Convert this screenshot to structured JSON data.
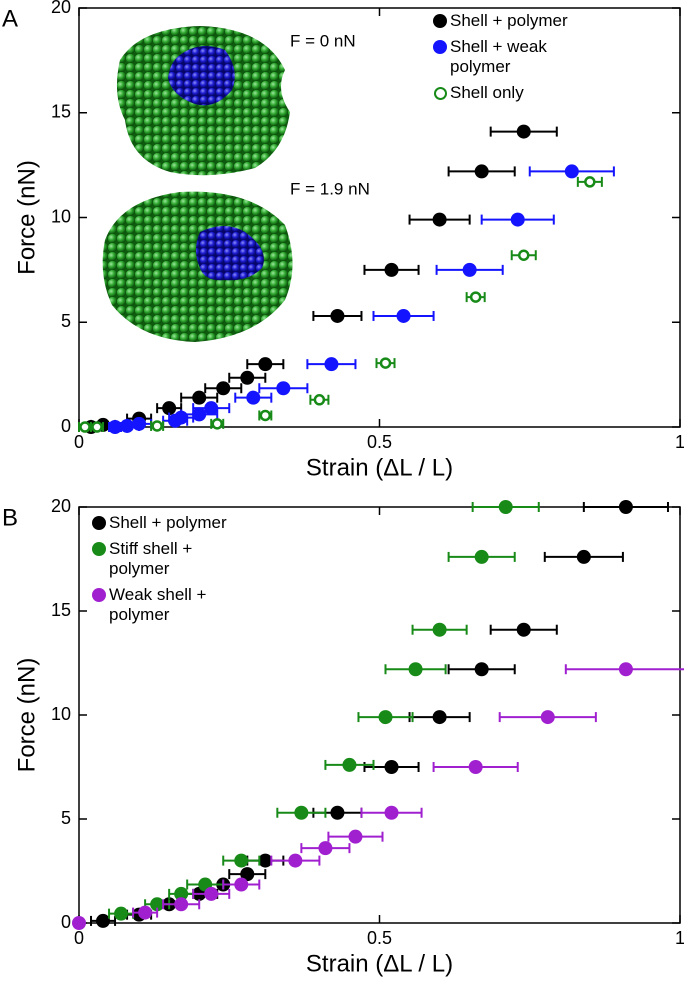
{
  "chart_data": [
    {
      "type": "scatter",
      "panel_label": "A",
      "annotations": [
        "F = 0 nN",
        "F = 1.9 nN"
      ],
      "xlabel": "Strain (ΔL / L)",
      "ylabel": "Force (nN)",
      "xlim": [
        0,
        1
      ],
      "ylim": [
        0,
        20
      ],
      "xticks": [
        0,
        0.5,
        1
      ],
      "yticks": [
        0,
        5,
        10,
        15,
        20
      ],
      "legend": "upper right",
      "series": [
        {
          "name": "Shell + polymer",
          "color": "#000000",
          "marker": "filled",
          "x": [
            0.02,
            0.04,
            0.1,
            0.15,
            0.2,
            0.24,
            0.28,
            0.31,
            0.43,
            0.52,
            0.6,
            0.67,
            0.74
          ],
          "y": [
            0,
            0.1,
            0.4,
            0.9,
            1.4,
            1.85,
            2.35,
            3.0,
            5.3,
            7.5,
            9.9,
            12.2,
            14.1
          ],
          "xerr": [
            0.01,
            0.02,
            0.02,
            0.02,
            0.03,
            0.03,
            0.03,
            0.03,
            0.04,
            0.045,
            0.05,
            0.055,
            0.055
          ]
        },
        {
          "name": "Shell + weak polymer",
          "color": "#1414ff",
          "marker": "filled",
          "x": [
            0.06,
            0.08,
            0.1,
            0.16,
            0.17,
            0.2,
            0.22,
            0.29,
            0.34,
            0.42,
            0.54,
            0.65,
            0.73,
            0.82
          ],
          "y": [
            0,
            0.05,
            0.15,
            0.3,
            0.45,
            0.6,
            0.9,
            1.4,
            1.85,
            3.0,
            5.3,
            7.5,
            9.9,
            12.2
          ],
          "xerr": [
            0.01,
            0.02,
            0.02,
            0.02,
            0.02,
            0.03,
            0.03,
            0.03,
            0.04,
            0.04,
            0.05,
            0.055,
            0.06,
            0.07
          ]
        },
        {
          "name": "Shell only",
          "color": "#178a17",
          "marker": "open",
          "x": [
            0.01,
            0.03,
            0.13,
            0.23,
            0.31,
            0.4,
            0.51,
            0.66,
            0.74,
            0.85
          ],
          "y": [
            0,
            0,
            0.05,
            0.15,
            0.55,
            1.3,
            3.05,
            6.2,
            8.2,
            11.7
          ],
          "xerr": [
            0.01,
            0.01,
            0.01,
            0.01,
            0.01,
            0.015,
            0.015,
            0.015,
            0.02,
            0.02
          ]
        }
      ]
    },
    {
      "type": "scatter",
      "panel_label": "B",
      "xlabel": "Strain (ΔL / L)",
      "ylabel": "Force (nN)",
      "xlim": [
        0,
        1
      ],
      "ylim": [
        0,
        20
      ],
      "xticks": [
        0,
        0.5,
        1
      ],
      "yticks": [
        0,
        5,
        10,
        15,
        20
      ],
      "legend": "upper left",
      "series": [
        {
          "name": "Shell + polymer",
          "color": "#000000",
          "marker": "filled",
          "x": [
            0.04,
            0.1,
            0.15,
            0.2,
            0.24,
            0.28,
            0.31,
            0.43,
            0.52,
            0.6,
            0.67,
            0.74,
            0.84,
            0.91
          ],
          "y": [
            0.1,
            0.4,
            0.9,
            1.4,
            1.85,
            2.35,
            3.0,
            5.3,
            7.5,
            9.9,
            12.2,
            14.1,
            17.6,
            20
          ],
          "xerr": [
            0.02,
            0.02,
            0.02,
            0.03,
            0.03,
            0.03,
            0.03,
            0.04,
            0.045,
            0.05,
            0.055,
            0.055,
            0.065,
            0.07
          ]
        },
        {
          "name": "Stiff shell + polymer",
          "color": "#178a17",
          "marker": "filled",
          "x": [
            0.07,
            0.13,
            0.17,
            0.21,
            0.27,
            0.37,
            0.45,
            0.51,
            0.56,
            0.6,
            0.67,
            0.71
          ],
          "y": [
            0.45,
            0.9,
            1.4,
            1.85,
            3.0,
            5.3,
            7.6,
            9.9,
            12.2,
            14.1,
            17.6,
            20
          ],
          "xerr": [
            0.02,
            0.02,
            0.02,
            0.03,
            0.03,
            0.04,
            0.04,
            0.045,
            0.05,
            0.045,
            0.055,
            0.055
          ]
        },
        {
          "name": "Weak shell + polymer",
          "color": "#a020d0",
          "marker": "filled",
          "x": [
            0,
            0.11,
            0.17,
            0.22,
            0.27,
            0.36,
            0.41,
            0.46,
            0.52,
            0.66,
            0.78,
            0.91
          ],
          "y": [
            0,
            0.5,
            0.9,
            1.4,
            1.85,
            3.0,
            3.6,
            4.15,
            5.3,
            7.5,
            9.9,
            12.2
          ],
          "xerr": [
            0,
            0.02,
            0.03,
            0.03,
            0.03,
            0.04,
            0.04,
            0.045,
            0.05,
            0.07,
            0.08,
            0.1
          ]
        }
      ]
    }
  ]
}
